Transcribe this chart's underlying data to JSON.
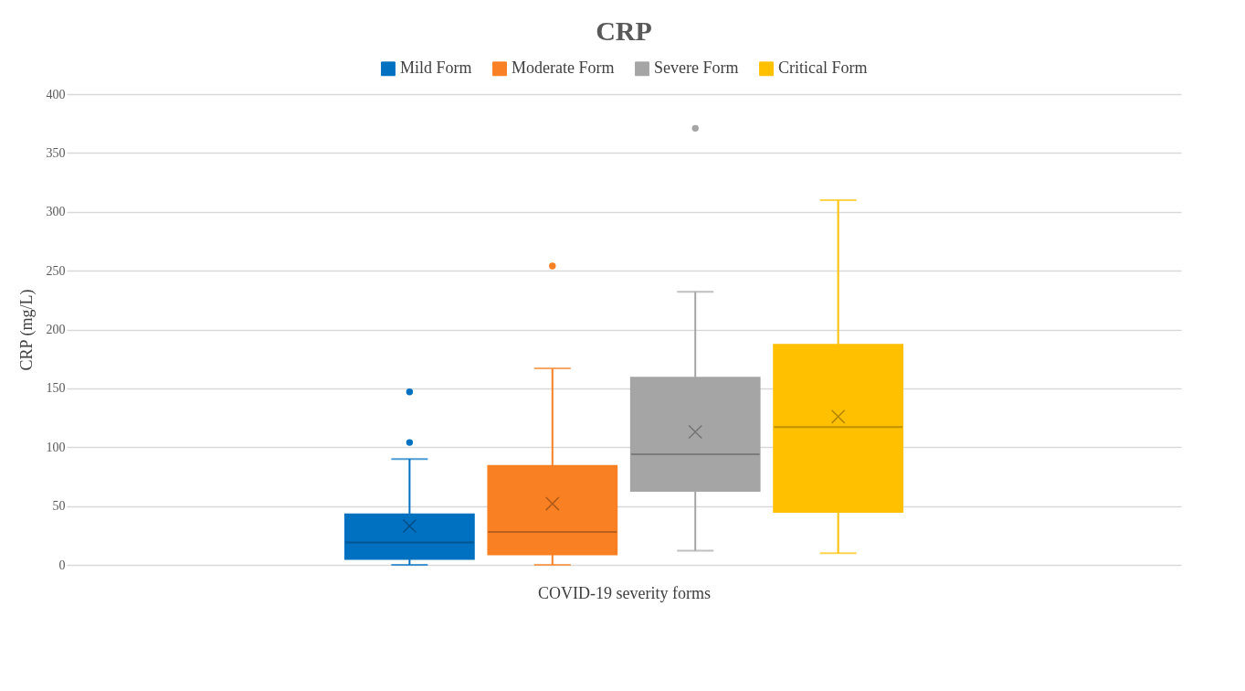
{
  "chart_data": {
    "type": "box",
    "title": "CRP",
    "xlabel": "COVID-19 severity forms",
    "ylabel": "CRP (mg/L)",
    "categories": [
      null
    ],
    "series": [
      {
        "name": "Mild Form",
        "color": "#0070c0",
        "boxes": [
          {
            "low": 0,
            "q1": 5,
            "median": 19,
            "q3": 43,
            "high": 90,
            "mean": 33,
            "outliers": [
              104,
              147
            ]
          }
        ]
      },
      {
        "name": "Moderate Form",
        "color": "#f98023",
        "boxes": [
          {
            "low": 0,
            "q1": 9,
            "median": 28,
            "q3": 84,
            "high": 167,
            "mean": 52,
            "outliers": [
              254
            ]
          }
        ]
      },
      {
        "name": "Severe Form",
        "color": "#a5a5a5",
        "boxes": [
          {
            "low": 12,
            "q1": 63,
            "median": 94,
            "q3": 159,
            "high": 232,
            "mean": 113,
            "outliers": [
              371
            ]
          }
        ]
      },
      {
        "name": "Critical Form",
        "color": "#ffc000",
        "boxes": [
          {
            "low": 10,
            "q1": 45,
            "median": 117,
            "q3": 187,
            "high": 310,
            "mean": 126
          }
        ]
      }
    ],
    "ylim": [
      0,
      400
    ],
    "yticks": [
      0,
      50,
      100,
      150,
      200,
      250,
      300,
      350,
      400
    ],
    "grid": "y",
    "legend": "top"
  }
}
